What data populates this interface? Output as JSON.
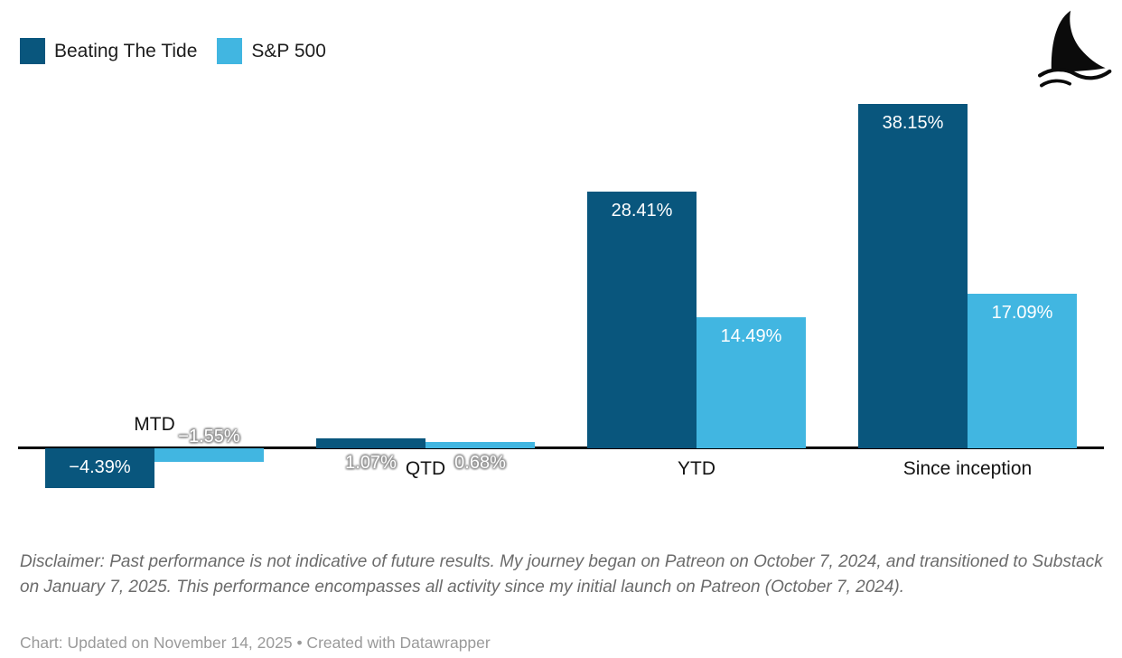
{
  "legend": {
    "items": [
      {
        "label": "Beating The Tide",
        "color": "#09567d"
      },
      {
        "label": "S&P 500",
        "color": "#41b6e1"
      }
    ]
  },
  "logo": {
    "name": "shark-fin-logo"
  },
  "chart_data": {
    "type": "bar",
    "title": "",
    "categories": [
      "MTD",
      "QTD",
      "YTD",
      "Since inception"
    ],
    "series": [
      {
        "name": "Beating The Tide",
        "color": "#09567d",
        "values": [
          -4.39,
          1.07,
          28.41,
          38.15
        ],
        "labels": [
          "−4.39%",
          "1.07%",
          "28.41%",
          "38.15%"
        ]
      },
      {
        "name": "S&P 500",
        "color": "#41b6e1",
        "values": [
          -1.55,
          0.68,
          14.49,
          17.09
        ],
        "labels": [
          "−1.55%",
          "0.68%",
          "14.49%",
          "17.09%"
        ]
      }
    ],
    "xlabel": "",
    "ylabel": "",
    "ylim": [
      -5,
      39
    ],
    "grid": false,
    "legend_position": "top-left",
    "value_suffix": "%",
    "baseline_value": 0
  },
  "footer": {
    "disclaimer": "Disclaimer: Past performance is not indicative of future results. My journey began on Patreon on October 7, 2024, and transitioned to Substack on January 7, 2025. This performance encompasses all activity since my initial launch on Patreon (October 7, 2024).",
    "byline": "Chart: Updated on November 14, 2025 • Created with Datawrapper"
  }
}
